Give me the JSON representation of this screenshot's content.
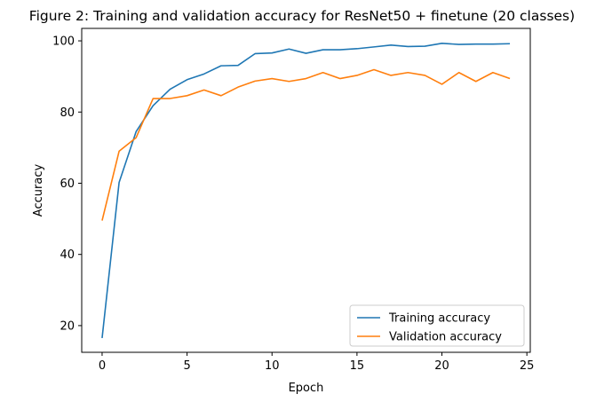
{
  "chart_data": {
    "type": "line",
    "title": "Figure 2: Training and validation accuracy for ResNet50 + finetune (20 classes)",
    "xlabel": "Epoch",
    "ylabel": "Accuracy",
    "xlim": [
      -1.2,
      25.2
    ],
    "ylim": [
      12.5,
      103.5
    ],
    "xticks": [
      0,
      5,
      10,
      15,
      20,
      25
    ],
    "yticks": [
      20,
      40,
      60,
      80,
      100
    ],
    "grid": false,
    "legend_position": "lower-right",
    "x": [
      0,
      1,
      2,
      3,
      4,
      5,
      6,
      7,
      8,
      9,
      10,
      11,
      12,
      13,
      14,
      15,
      16,
      17,
      18,
      19,
      20,
      21,
      22,
      23,
      24
    ],
    "series": [
      {
        "name": "Training accuracy",
        "color": "#1f77b4",
        "values": [
          16.5,
          60.2,
          74.5,
          81.8,
          86.4,
          89.1,
          90.7,
          93.0,
          93.1,
          96.4,
          96.6,
          97.7,
          96.5,
          97.5,
          97.5,
          97.8,
          98.3,
          98.8,
          98.4,
          98.5,
          99.3,
          99.0,
          99.1,
          99.1,
          99.2
        ]
      },
      {
        "name": "Validation accuracy",
        "color": "#ff7f0e",
        "values": [
          49.5,
          69.0,
          72.8,
          83.8,
          83.8,
          84.6,
          86.2,
          84.6,
          87.0,
          88.7,
          89.4,
          88.6,
          89.4,
          91.1,
          89.4,
          90.3,
          91.9,
          90.3,
          91.1,
          90.3,
          87.8,
          91.1,
          88.6,
          91.1,
          89.4
        ]
      }
    ]
  }
}
